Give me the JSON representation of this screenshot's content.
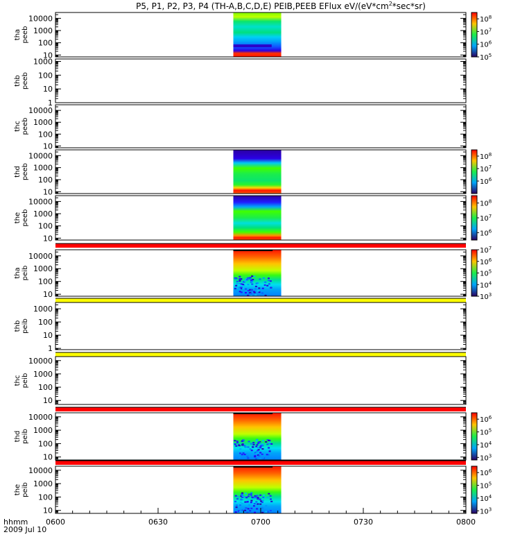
{
  "title": "P5, P1, P2, P3, P4 (TH-A,B,C,D,E) PEIB,PEEB EFlux eV/(eV*cm",
  "title_sup": "2",
  "title_end": "*sec*sr)",
  "colors": {
    "background": "#ffffff",
    "axis": "#000000",
    "flag_red": "#ff0000",
    "flag_yellow": "#ffff00"
  },
  "chart_data": [
    {
      "type": "heatmap",
      "probe": "tha",
      "product": "peeb",
      "ylabel_top": "tha",
      "ylabel_bottom": "peeb",
      "yscale": "log",
      "ylim": [
        7,
        30000
      ],
      "yticks": [
        "10",
        "100",
        "1000",
        "10000"
      ],
      "data_time_range": [
        "0652",
        "0706"
      ],
      "flag_above": null,
      "colorbar": {
        "min_exp": 5,
        "max_exp": 8.5,
        "ticks": [
          5,
          6,
          7,
          8
        ]
      },
      "pattern": "peeb_a"
    },
    {
      "type": "heatmap",
      "probe": "thb",
      "product": "peeb",
      "ylabel_top": "thb",
      "ylabel_bottom": "peeb",
      "yscale": "log",
      "ylim": [
        1,
        1500
      ],
      "yticks": [
        "1",
        "10",
        "100",
        "1000"
      ],
      "data_time_range": null,
      "flag_above": null,
      "colorbar": null
    },
    {
      "type": "heatmap",
      "probe": "thc",
      "product": "peeb",
      "ylabel_top": "thc",
      "ylabel_bottom": "peeb",
      "yscale": "log",
      "ylim": [
        7,
        30000
      ],
      "yticks": [
        "10",
        "100",
        "1000",
        "10000"
      ],
      "data_time_range": null,
      "flag_above": null,
      "colorbar": null
    },
    {
      "type": "heatmap",
      "probe": "thd",
      "product": "peeb",
      "ylabel_top": "thd",
      "ylabel_bottom": "peeb",
      "yscale": "log",
      "ylim": [
        7,
        30000
      ],
      "yticks": [
        "10",
        "100",
        "1000",
        "10000"
      ],
      "data_time_range": [
        "0652",
        "0706"
      ],
      "flag_above": null,
      "colorbar": {
        "min_exp": 5,
        "max_exp": 8.5,
        "ticks": [
          6,
          7,
          8
        ]
      },
      "pattern": "peeb_d"
    },
    {
      "type": "heatmap",
      "probe": "the",
      "product": "peeb",
      "ylabel_top": "the",
      "ylabel_bottom": "peeb",
      "yscale": "log",
      "ylim": [
        7,
        30000
      ],
      "yticks": [
        "10",
        "100",
        "1000",
        "10000"
      ],
      "data_time_range": [
        "0652",
        "0706"
      ],
      "flag_above": null,
      "colorbar": {
        "min_exp": 5.5,
        "max_exp": 8.5,
        "ticks": [
          6,
          7,
          8
        ]
      },
      "pattern": "peeb_e"
    },
    {
      "type": "heatmap",
      "probe": "tha",
      "product": "peib",
      "ylabel_top": "tha",
      "ylabel_bottom": "peib",
      "yscale": "log",
      "ylim": [
        7,
        30000
      ],
      "yticks": [
        "10",
        "100",
        "1000",
        "10000"
      ],
      "data_time_range": [
        "0652",
        "0706"
      ],
      "flag_above": "red",
      "colorbar": {
        "min_exp": 3,
        "max_exp": 7,
        "ticks": [
          3,
          4,
          5,
          6,
          7
        ]
      },
      "pattern": "peib"
    },
    {
      "type": "heatmap",
      "probe": "thb",
      "product": "peib",
      "ylabel_top": "thb",
      "ylabel_bottom": "peib",
      "yscale": "log",
      "ylim": [
        0.8,
        3000
      ],
      "yticks": [
        "1",
        "10",
        "100",
        "1000"
      ],
      "data_time_range": null,
      "flag_above": "yellow",
      "colorbar": null
    },
    {
      "type": "heatmap",
      "probe": "thc",
      "product": "peib",
      "ylabel_top": "thc",
      "ylabel_bottom": "peib",
      "yscale": "log",
      "ylim": [
        5,
        20000
      ],
      "yticks": [
        "10",
        "100",
        "1000",
        "10000"
      ],
      "data_time_range": null,
      "flag_above": "yellow",
      "colorbar": null
    },
    {
      "type": "heatmap",
      "probe": "thd",
      "product": "peib",
      "ylabel_top": "thd",
      "ylabel_bottom": "peib",
      "yscale": "log",
      "ylim": [
        6,
        20000
      ],
      "yticks": [
        "10",
        "100",
        "1000",
        "10000"
      ],
      "data_time_range": [
        "0652",
        "0706"
      ],
      "flag_above": "red",
      "colorbar": {
        "min_exp": 2.8,
        "max_exp": 6.5,
        "ticks": [
          3,
          4,
          5,
          6
        ]
      },
      "pattern": "peib"
    },
    {
      "type": "heatmap",
      "probe": "the",
      "product": "peib",
      "ylabel_top": "the",
      "ylabel_bottom": "peib",
      "yscale": "log",
      "ylim": [
        6,
        20000
      ],
      "yticks": [
        "10",
        "100",
        "1000",
        "10000"
      ],
      "data_time_range": [
        "0652",
        "0706"
      ],
      "flag_above": "red",
      "colorbar": {
        "min_exp": 2.8,
        "max_exp": 6.5,
        "ticks": [
          3,
          4,
          5,
          6
        ]
      },
      "pattern": "peib"
    }
  ],
  "x_axis": {
    "label_top": "hhmm",
    "label_bottom": "2009 Jul 10",
    "range": [
      "0600",
      "0800"
    ],
    "ticks": [
      "0600",
      "0630",
      "0700",
      "0730",
      "0800"
    ]
  }
}
